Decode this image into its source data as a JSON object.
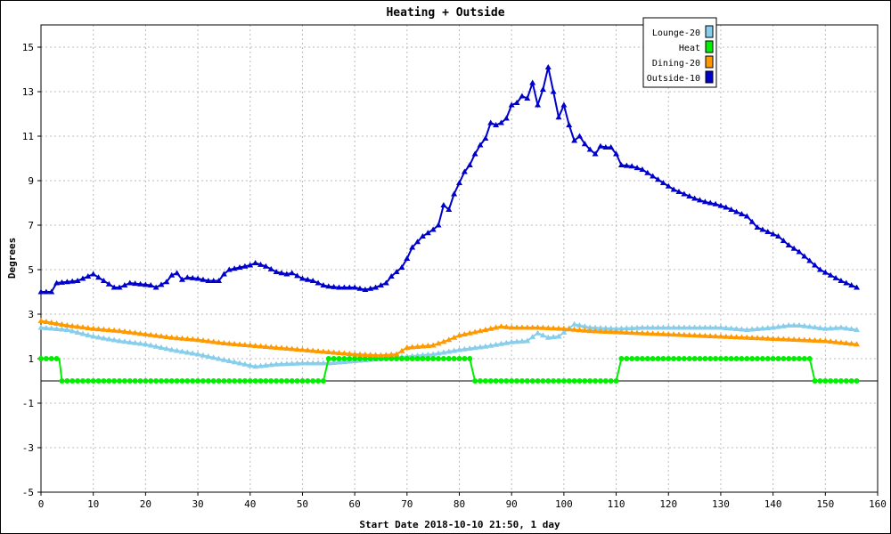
{
  "chart_data": {
    "type": "line",
    "title": "Heating + Outside",
    "xlabel": "Start Date 2018-10-10 21:50, 1 day",
    "ylabel": "Degrees",
    "xlim": [
      0,
      160
    ],
    "ylim": [
      -5,
      16
    ],
    "xticks": [
      "0",
      "10",
      "20",
      "30",
      "40",
      "50",
      "60",
      "70",
      "80",
      "90",
      "100",
      "110",
      "120",
      "130",
      "140",
      "150",
      "160"
    ],
    "yticks": [
      "15",
      "13",
      "11",
      "9",
      "7",
      "5",
      "3",
      "1",
      "-1",
      "-3",
      "-5"
    ],
    "grid": true,
    "legend_position": "top-right",
    "series": [
      {
        "name": "Lounge-20",
        "color": "#87ceeb",
        "points": [
          [
            0,
            2.4
          ],
          [
            5,
            2.3
          ],
          [
            10,
            2.0
          ],
          [
            15,
            1.8
          ],
          [
            20,
            1.65
          ],
          [
            25,
            1.4
          ],
          [
            30,
            1.2
          ],
          [
            35,
            0.95
          ],
          [
            40,
            0.7
          ],
          [
            41,
            0.65
          ],
          [
            45,
            0.75
          ],
          [
            50,
            0.8
          ],
          [
            55,
            0.8
          ],
          [
            60,
            0.9
          ],
          [
            65,
            1.0
          ],
          [
            70,
            1.1
          ],
          [
            75,
            1.2
          ],
          [
            80,
            1.4
          ],
          [
            85,
            1.55
          ],
          [
            90,
            1.75
          ],
          [
            93,
            1.8
          ],
          [
            95,
            2.15
          ],
          [
            97,
            1.95
          ],
          [
            99,
            2.0
          ],
          [
            102,
            2.55
          ],
          [
            105,
            2.4
          ],
          [
            110,
            2.35
          ],
          [
            115,
            2.4
          ],
          [
            120,
            2.4
          ],
          [
            125,
            2.4
          ],
          [
            130,
            2.4
          ],
          [
            135,
            2.3
          ],
          [
            140,
            2.4
          ],
          [
            143,
            2.5
          ],
          [
            145,
            2.5
          ],
          [
            150,
            2.35
          ],
          [
            153,
            2.4
          ],
          [
            156,
            2.3
          ]
        ]
      },
      {
        "name": "Heat",
        "color": "#00ee00",
        "points": [
          [
            0,
            1
          ],
          [
            3.5,
            1
          ],
          [
            4,
            0
          ],
          [
            54,
            0
          ],
          [
            55,
            1
          ],
          [
            82,
            1
          ],
          [
            83,
            0
          ],
          [
            110,
            0
          ],
          [
            111,
            1
          ],
          [
            147,
            1
          ],
          [
            148,
            0
          ],
          [
            156,
            0
          ]
        ]
      },
      {
        "name": "Dining-20",
        "color": "#ff9900",
        "points": [
          [
            0,
            2.7
          ],
          [
            5,
            2.5
          ],
          [
            10,
            2.35
          ],
          [
            15,
            2.25
          ],
          [
            20,
            2.1
          ],
          [
            25,
            1.95
          ],
          [
            30,
            1.85
          ],
          [
            35,
            1.7
          ],
          [
            40,
            1.6
          ],
          [
            45,
            1.5
          ],
          [
            50,
            1.4
          ],
          [
            55,
            1.3
          ],
          [
            60,
            1.2
          ],
          [
            65,
            1.15
          ],
          [
            68,
            1.2
          ],
          [
            70,
            1.5
          ],
          [
            75,
            1.6
          ],
          [
            78,
            1.85
          ],
          [
            80,
            2.05
          ],
          [
            85,
            2.3
          ],
          [
            88,
            2.45
          ],
          [
            90,
            2.4
          ],
          [
            95,
            2.4
          ],
          [
            100,
            2.35
          ],
          [
            105,
            2.25
          ],
          [
            110,
            2.2
          ],
          [
            115,
            2.15
          ],
          [
            120,
            2.1
          ],
          [
            125,
            2.05
          ],
          [
            130,
            2.0
          ],
          [
            135,
            1.95
          ],
          [
            140,
            1.9
          ],
          [
            145,
            1.85
          ],
          [
            150,
            1.8
          ],
          [
            156,
            1.65
          ]
        ]
      },
      {
        "name": "Outside-10",
        "color": "#0000cc",
        "points": [
          [
            0,
            4.0
          ],
          [
            2,
            4.0
          ],
          [
            3,
            4.4
          ],
          [
            5,
            4.45
          ],
          [
            7,
            4.5
          ],
          [
            9,
            4.7
          ],
          [
            10,
            4.8
          ],
          [
            12,
            4.5
          ],
          [
            14,
            4.2
          ],
          [
            15,
            4.2
          ],
          [
            17,
            4.4
          ],
          [
            19,
            4.35
          ],
          [
            21,
            4.3
          ],
          [
            22,
            4.2
          ],
          [
            24,
            4.45
          ],
          [
            25,
            4.75
          ],
          [
            26,
            4.85
          ],
          [
            27,
            4.55
          ],
          [
            28,
            4.65
          ],
          [
            30,
            4.6
          ],
          [
            32,
            4.5
          ],
          [
            34,
            4.5
          ],
          [
            35,
            4.8
          ],
          [
            36,
            5.0
          ],
          [
            38,
            5.1
          ],
          [
            40,
            5.2
          ],
          [
            41,
            5.3
          ],
          [
            43,
            5.15
          ],
          [
            45,
            4.9
          ],
          [
            47,
            4.8
          ],
          [
            48,
            4.85
          ],
          [
            50,
            4.6
          ],
          [
            52,
            4.5
          ],
          [
            54,
            4.3
          ],
          [
            55,
            4.25
          ],
          [
            57,
            4.2
          ],
          [
            60,
            4.2
          ],
          [
            62,
            4.1
          ],
          [
            64,
            4.2
          ],
          [
            66,
            4.4
          ],
          [
            67,
            4.7
          ],
          [
            69,
            5.1
          ],
          [
            70,
            5.5
          ],
          [
            71,
            6.0
          ],
          [
            73,
            6.5
          ],
          [
            75,
            6.8
          ],
          [
            76,
            7.0
          ],
          [
            77,
            7.9
          ],
          [
            78,
            7.7
          ],
          [
            79,
            8.4
          ],
          [
            80,
            8.9
          ],
          [
            81,
            9.4
          ],
          [
            82,
            9.7
          ],
          [
            83,
            10.2
          ],
          [
            84,
            10.6
          ],
          [
            85,
            10.9
          ],
          [
            86,
            11.6
          ],
          [
            87,
            11.5
          ],
          [
            88,
            11.6
          ],
          [
            89,
            11.8
          ],
          [
            90,
            12.4
          ],
          [
            91,
            12.5
          ],
          [
            92,
            12.8
          ],
          [
            93,
            12.7
          ],
          [
            94,
            13.4
          ],
          [
            95,
            12.4
          ],
          [
            96,
            13.1
          ],
          [
            97,
            14.1
          ],
          [
            98,
            13.0
          ],
          [
            99,
            11.85
          ],
          [
            100,
            12.4
          ],
          [
            101,
            11.5
          ],
          [
            102,
            10.8
          ],
          [
            103,
            11.0
          ],
          [
            104,
            10.65
          ],
          [
            105,
            10.4
          ],
          [
            106,
            10.2
          ],
          [
            107,
            10.55
          ],
          [
            108,
            10.5
          ],
          [
            109,
            10.5
          ],
          [
            110,
            10.2
          ],
          [
            111,
            9.7
          ],
          [
            113,
            9.65
          ],
          [
            115,
            9.5
          ],
          [
            117,
            9.2
          ],
          [
            119,
            8.9
          ],
          [
            121,
            8.6
          ],
          [
            123,
            8.4
          ],
          [
            125,
            8.2
          ],
          [
            127,
            8.05
          ],
          [
            129,
            7.95
          ],
          [
            131,
            7.8
          ],
          [
            133,
            7.6
          ],
          [
            135,
            7.4
          ],
          [
            137,
            6.9
          ],
          [
            139,
            6.7
          ],
          [
            141,
            6.5
          ],
          [
            143,
            6.1
          ],
          [
            145,
            5.8
          ],
          [
            147,
            5.4
          ],
          [
            149,
            5.0
          ],
          [
            151,
            4.75
          ],
          [
            153,
            4.5
          ],
          [
            155,
            4.3
          ],
          [
            156,
            4.2
          ]
        ]
      }
    ]
  }
}
